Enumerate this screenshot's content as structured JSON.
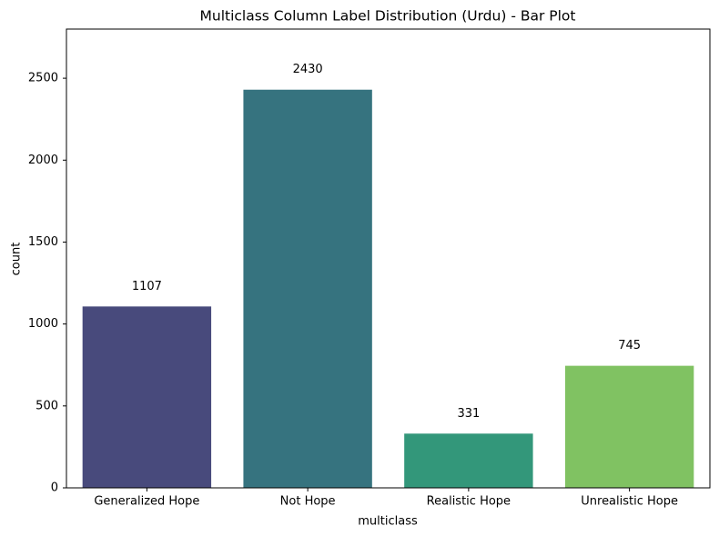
{
  "chart_data": {
    "type": "bar",
    "title": "Multiclass Column Label Distribution (Urdu) - Bar Plot",
    "x_label": "multiclass",
    "y_label": "count",
    "categories": [
      "Generalized Hope",
      "Not Hope",
      "Realistic Hope",
      "Unrealistic Hope"
    ],
    "values": [
      1107,
      2430,
      331,
      745
    ],
    "colors": [
      "#484a7c",
      "#36737f",
      "#33977a",
      "#80c262"
    ],
    "ylim": [
      0,
      2800
    ],
    "yticks": [
      0,
      500,
      1000,
      1500,
      2000,
      2500
    ]
  }
}
